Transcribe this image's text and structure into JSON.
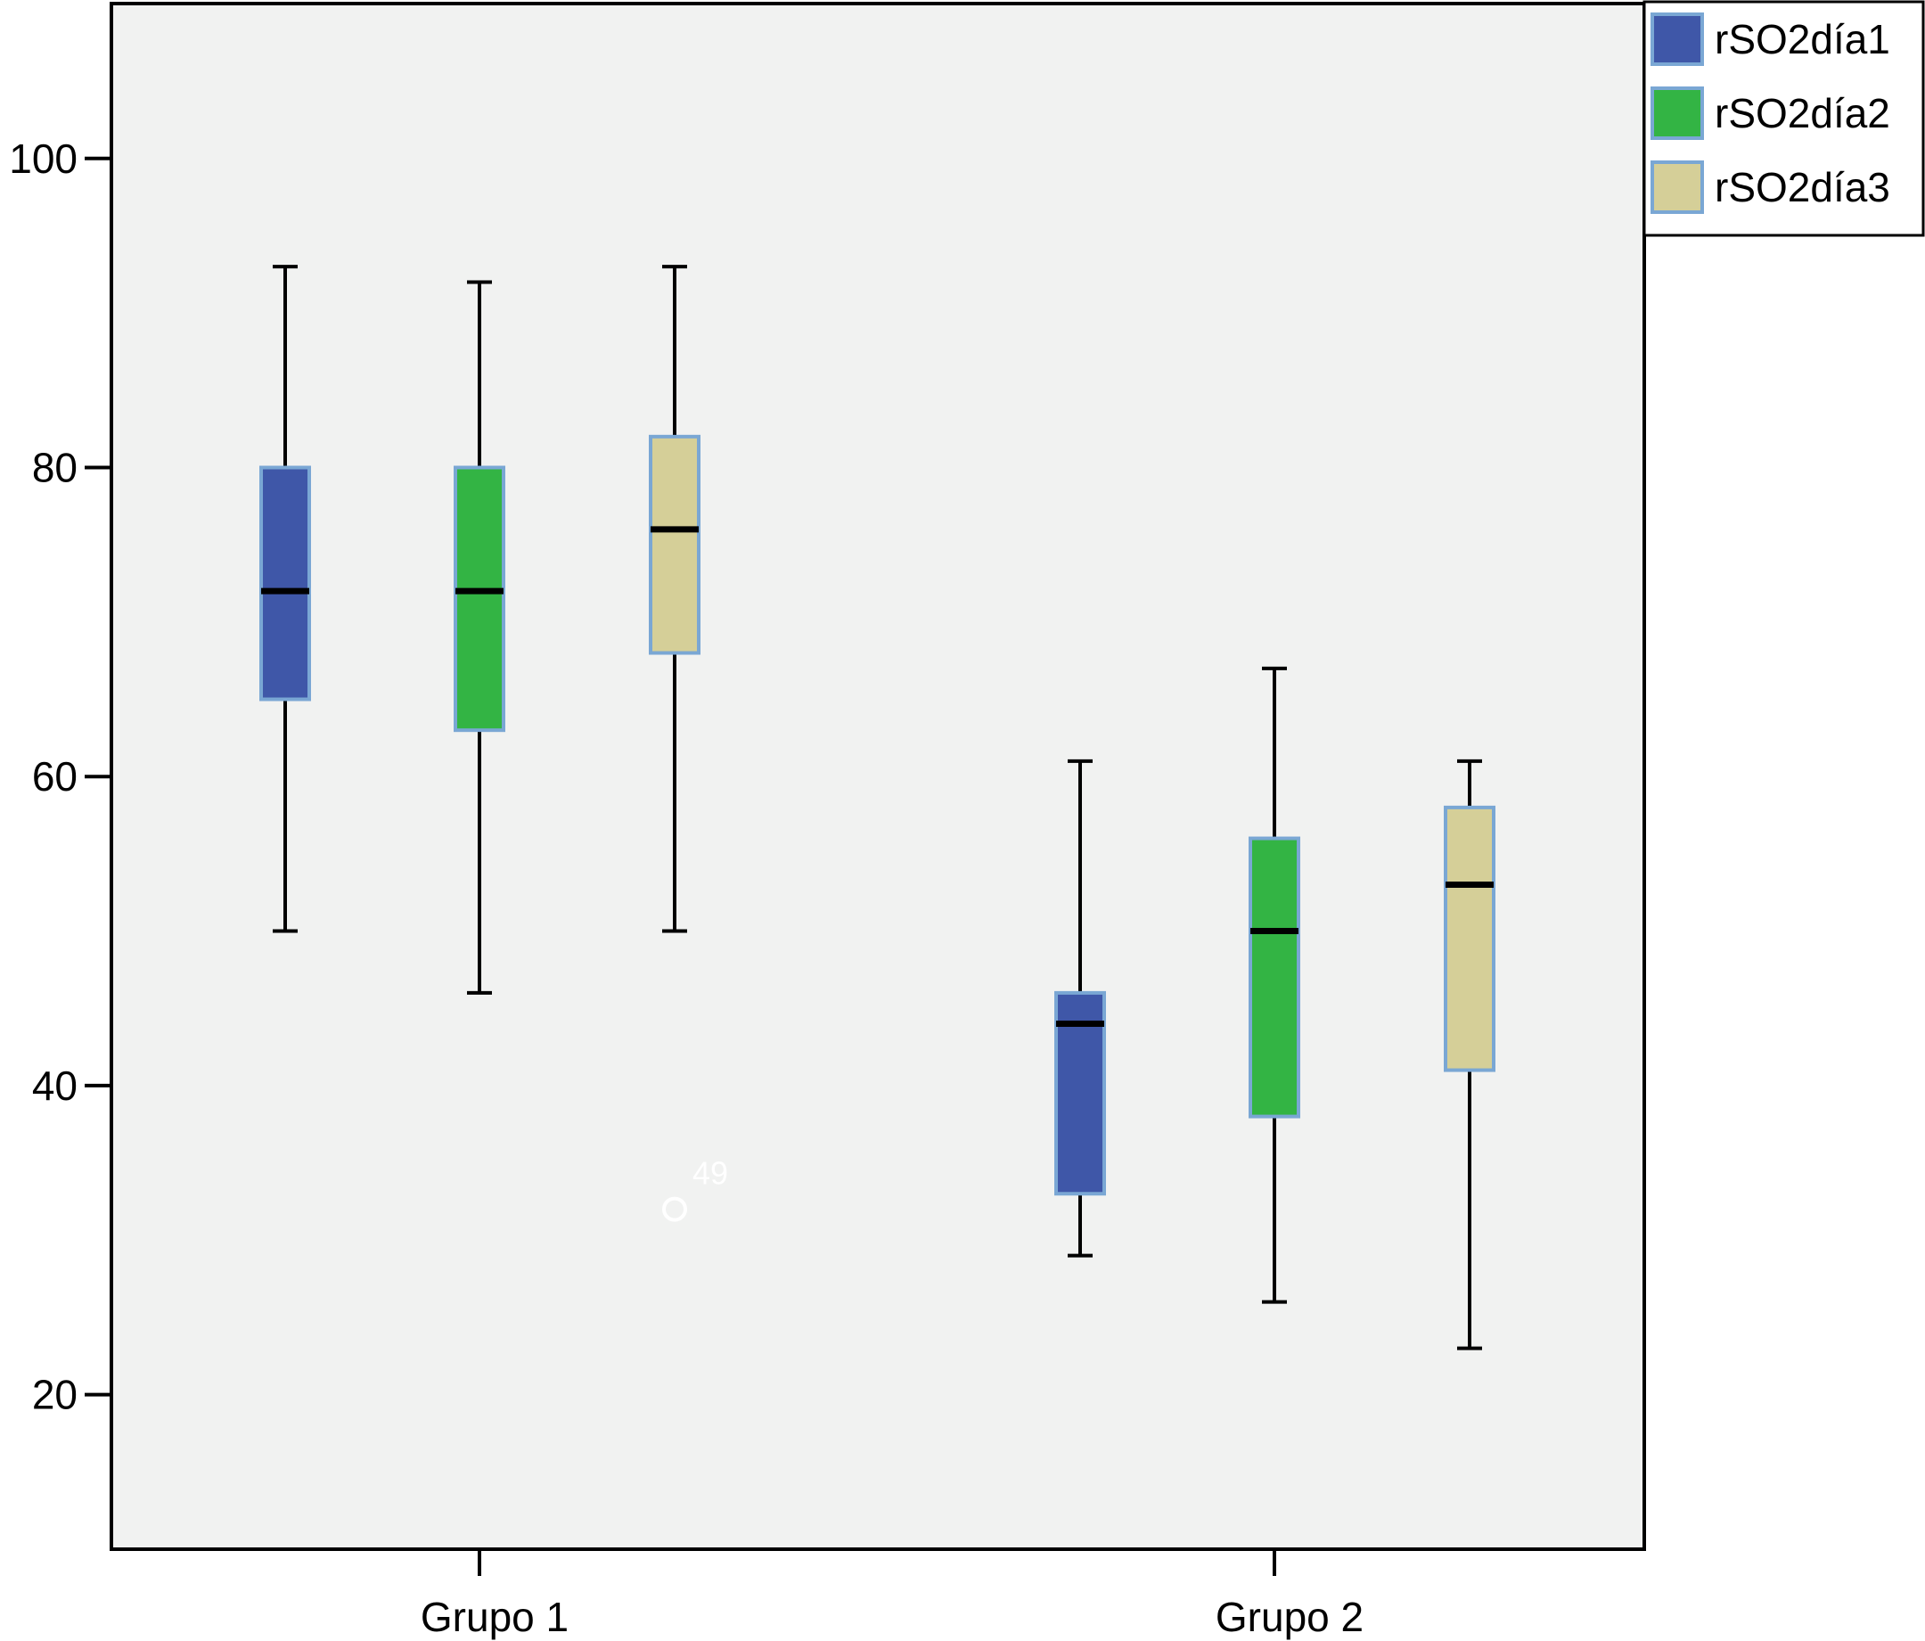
{
  "chart_data": {
    "type": "boxplot",
    "title": "",
    "xlabel": "",
    "ylabel": "",
    "ylim": [
      10,
      110
    ],
    "yticks": [
      20,
      40,
      60,
      80,
      100
    ],
    "categories": [
      "Grupo 1",
      "Grupo 2"
    ],
    "legend": {
      "position": "top-right"
    },
    "series": [
      {
        "name": "rSO2día1",
        "color": "#3f57a8",
        "boxes": [
          {
            "min": 50,
            "q1": 65,
            "median": 72,
            "q3": 80,
            "max": 93
          },
          {
            "min": 29,
            "q1": 33,
            "median": 44,
            "q3": 46,
            "max": 61
          }
        ]
      },
      {
        "name": "rSO2día2",
        "color": "#33b444",
        "boxes": [
          {
            "min": 46,
            "q1": 63,
            "median": 72,
            "q3": 80,
            "max": 92
          },
          {
            "min": 26,
            "q1": 38,
            "median": 50,
            "q3": 56,
            "max": 67
          }
        ]
      },
      {
        "name": "rSO2día3",
        "color": "#d5cf98",
        "boxes": [
          {
            "min": 50,
            "q1": 68,
            "median": 76,
            "q3": 82,
            "max": 93
          },
          {
            "min": 23,
            "q1": 41,
            "median": 53,
            "q3": 58,
            "max": 61
          }
        ]
      }
    ],
    "outliers": [
      {
        "category": "Grupo 1",
        "series": "rSO2día3",
        "value": 32,
        "label": "49"
      }
    ],
    "colors": {
      "plot_background": "#f1f2f1",
      "box_border": "#7aa7d4",
      "outlier": "#ffffff"
    }
  }
}
